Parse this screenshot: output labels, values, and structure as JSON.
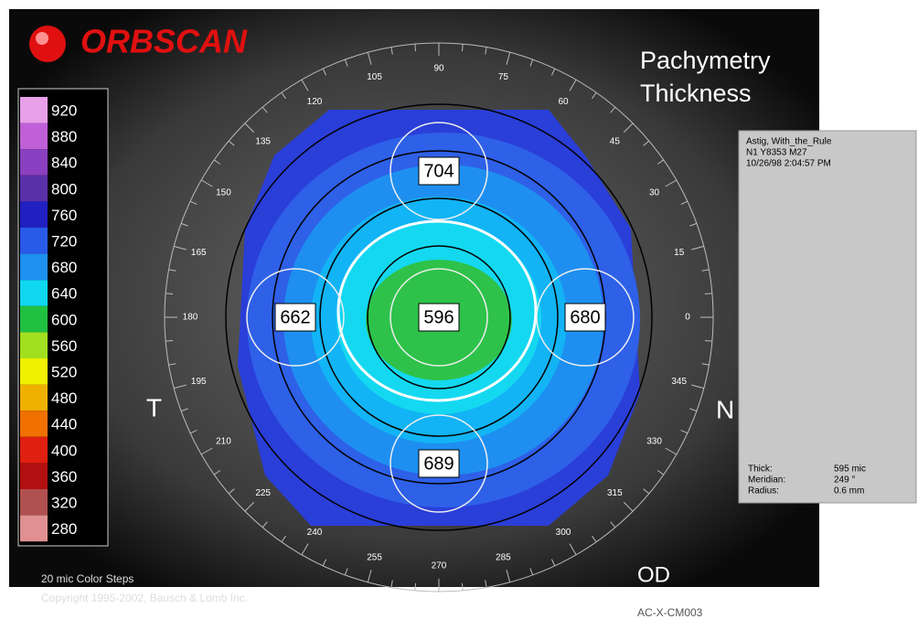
{
  "header": {
    "logo": "ORBSCAN",
    "title_line1": "Pachymetry",
    "title_line2": "Thickness"
  },
  "color_scale": [
    {
      "value": 920,
      "color": "#e8a0e8"
    },
    {
      "value": 880,
      "color": "#c060d8"
    },
    {
      "value": 840,
      "color": "#8a40c0"
    },
    {
      "value": 800,
      "color": "#5a30a8"
    },
    {
      "value": 760,
      "color": "#2020c0"
    },
    {
      "value": 720,
      "color": "#2a5ae8"
    },
    {
      "value": 680,
      "color": "#1e90f0"
    },
    {
      "value": 640,
      "color": "#10d8f0"
    },
    {
      "value": 600,
      "color": "#20c040"
    },
    {
      "value": 560,
      "color": "#a0e020"
    },
    {
      "value": 520,
      "color": "#f0f000"
    },
    {
      "value": 480,
      "color": "#f0b000"
    },
    {
      "value": 440,
      "color": "#f07000"
    },
    {
      "value": 400,
      "color": "#e02010"
    },
    {
      "value": 360,
      "color": "#b01010"
    },
    {
      "value": 320,
      "color": "#b05050"
    },
    {
      "value": 280,
      "color": "#e09090"
    }
  ],
  "angle_labels": [
    0,
    15,
    30,
    45,
    60,
    75,
    90,
    105,
    120,
    135,
    150,
    165,
    180,
    195,
    210,
    225,
    240,
    255,
    270,
    285,
    300,
    315,
    330,
    345
  ],
  "thickness_markers": {
    "center": 596,
    "superior": 704,
    "temporal": 662,
    "nasal": 680,
    "inferior": 689
  },
  "side_labels": {
    "left": "T",
    "right": "N",
    "eye": "OD"
  },
  "info_panel": {
    "line1": "Astig, With_the_Rule",
    "line2": "N1 Y8353 M27",
    "line3": "10/26/98 2:04:57 PM",
    "rows": [
      [
        "Thick:",
        "595 mic"
      ],
      [
        "Meridian:",
        "249 °"
      ],
      [
        "Radius:",
        "0.6 mm"
      ]
    ]
  },
  "footer": {
    "steps": "20 mic Color Steps",
    "copyright": "Copyright 1995-2002, Bausch & Lomb Inc.",
    "code": "AC-X-CM003"
  }
}
